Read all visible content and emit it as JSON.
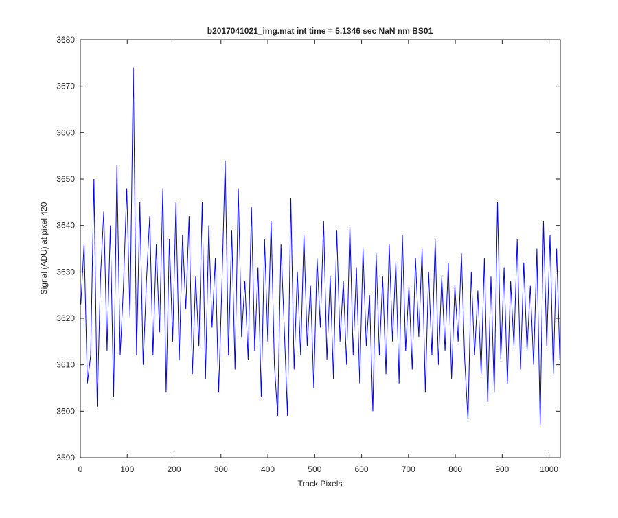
{
  "chart_data": {
    "type": "line",
    "title": "b2017041021_img.mat int time = 5.1346 sec  NaN nm BS01",
    "x_label": "Track Pixels",
    "y_label": "Signal (ADU) at pixel 420",
    "x": [
      1,
      8,
      15,
      22,
      29,
      36,
      43,
      50,
      57,
      64,
      71,
      78,
      85,
      92,
      99,
      106,
      113,
      120,
      127,
      134,
      141,
      148,
      155,
      162,
      169,
      176,
      183,
      190,
      197,
      204,
      211,
      218,
      225,
      232,
      239,
      246,
      253,
      260,
      267,
      274,
      281,
      288,
      295,
      302,
      309,
      316,
      323,
      330,
      337,
      344,
      351,
      358,
      365,
      372,
      379,
      386,
      393,
      400,
      407,
      414,
      421,
      428,
      435,
      442,
      449,
      456,
      463,
      470,
      477,
      484,
      491,
      498,
      505,
      512,
      519,
      526,
      533,
      540,
      547,
      554,
      561,
      568,
      575,
      582,
      589,
      596,
      603,
      610,
      617,
      624,
      631,
      638,
      645,
      652,
      659,
      666,
      673,
      680,
      687,
      694,
      701,
      708,
      715,
      722,
      729,
      736,
      743,
      750,
      757,
      764,
      771,
      778,
      785,
      792,
      799,
      806,
      813,
      820,
      827,
      834,
      841,
      848,
      855,
      862,
      869,
      876,
      883,
      890,
      897,
      904,
      911,
      918,
      925,
      932,
      939,
      946,
      953,
      960,
      967,
      974,
      981,
      988,
      995,
      1002,
      1009,
      1016,
      1023
    ],
    "series": [
      {
        "color": "#0000ff",
        "values": [
          3623,
          3636,
          3606,
          3612,
          3650,
          3601,
          3629,
          3643,
          3613,
          3640,
          3603,
          3653,
          3612,
          3627,
          3648,
          3620,
          3674,
          3612,
          3645,
          3610,
          3628,
          3642,
          3612,
          3636,
          3617,
          3648,
          3604,
          3637,
          3615,
          3645,
          3611,
          3638,
          3622,
          3642,
          3608,
          3629,
          3614,
          3645,
          3607,
          3640,
          3618,
          3633,
          3604,
          3627,
          3654,
          3612,
          3639,
          3609,
          3648,
          3616,
          3628,
          3611,
          3644,
          3613,
          3631,
          3603,
          3637,
          3615,
          3641,
          3610,
          3599,
          3636,
          3618,
          3599,
          3646,
          3609,
          3630,
          3612,
          3638,
          3614,
          3627,
          3605,
          3633,
          3618,
          3641,
          3611,
          3629,
          3607,
          3639,
          3615,
          3628,
          3610,
          3640,
          3612,
          3631,
          3606,
          3635,
          3614,
          3625,
          3600,
          3634,
          3612,
          3629,
          3608,
          3636,
          3615,
          3632,
          3606,
          3638,
          3613,
          3627,
          3609,
          3633,
          3616,
          3635,
          3604,
          3630,
          3612,
          3637,
          3610,
          3629,
          3613,
          3632,
          3607,
          3627,
          3615,
          3634,
          3611,
          3598,
          3630,
          3612,
          3626,
          3608,
          3633,
          3602,
          3629,
          3604,
          3645,
          3611,
          3631,
          3606,
          3628,
          3614,
          3637,
          3609,
          3632,
          3613,
          3627,
          3610,
          3635,
          3597,
          3641,
          3614,
          3638,
          3608,
          3635,
          3611
        ]
      }
    ],
    "xlim": [
      0,
      1024
    ],
    "ylim": [
      3590,
      3680
    ],
    "xticks": [
      0,
      100,
      200,
      300,
      400,
      500,
      600,
      700,
      800,
      900,
      1000
    ],
    "yticks": [
      3590,
      3600,
      3610,
      3620,
      3630,
      3640,
      3650,
      3660,
      3670,
      3680
    ]
  }
}
